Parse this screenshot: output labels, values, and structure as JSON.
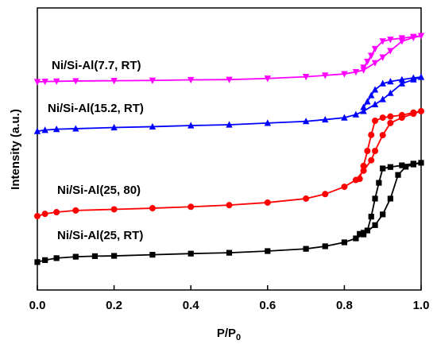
{
  "chart_data": {
    "type": "line",
    "ylabel": "Intensity (a.u.)",
    "xlabel": {
      "text": "P/P",
      "subscript": "0"
    },
    "xlim": [
      0,
      1
    ],
    "ylim": [
      0,
      100
    ],
    "xticks": [
      {
        "value": 0,
        "label": "0.0"
      },
      0.2,
      0.4,
      0.6,
      0.8,
      {
        "value": 1,
        "label": "1.0"
      }
    ],
    "series": [
      {
        "name": "Ni/Si-Al(25, RT)",
        "color": "#000000",
        "marker": "square",
        "x": [
          0,
          0.02,
          0.05,
          0.1,
          0.15,
          0.2,
          0.3,
          0.4,
          0.5,
          0.6,
          0.7,
          0.75,
          0.8,
          0.83,
          0.85,
          0.88,
          0.9,
          0.92,
          0.94,
          0.96,
          0.98,
          1.0,
          0.98,
          0.95,
          0.92,
          0.9,
          0.89,
          0.88,
          0.87,
          0.86,
          0.85,
          0.84
        ],
        "values": [
          9.9,
          10.6,
          11.3,
          11.8,
          12.0,
          12.1,
          12.5,
          12.9,
          13.2,
          13.8,
          14.6,
          15.5,
          16.9,
          18.3,
          19.7,
          23.0,
          26.8,
          32.4,
          40.8,
          43.7,
          44.5,
          45.1,
          44.8,
          44.2,
          43.6,
          43.1,
          38.0,
          32.4,
          26.0,
          21.1,
          20.3,
          19.9
        ]
      },
      {
        "name": "Ni/Si-Al(25, 80)",
        "color": "#ff0000",
        "marker": "circle",
        "x": [
          0,
          0.02,
          0.05,
          0.1,
          0.2,
          0.3,
          0.4,
          0.5,
          0.6,
          0.7,
          0.75,
          0.8,
          0.83,
          0.85,
          0.87,
          0.88,
          0.9,
          0.92,
          0.95,
          0.98,
          1.0,
          0.98,
          0.95,
          0.92,
          0.9,
          0.88,
          0.87,
          0.86,
          0.85,
          0.84
        ],
        "values": [
          26.2,
          27.0,
          27.6,
          28.2,
          28.6,
          29.0,
          29.5,
          30.1,
          31.0,
          32.4,
          34.0,
          36.6,
          39.0,
          42.3,
          46.0,
          49.3,
          54.9,
          59.2,
          61.1,
          62.5,
          63.4,
          62.9,
          62.0,
          61.5,
          61.1,
          60.0,
          55.0,
          49.3,
          44.0,
          39.4
        ]
      },
      {
        "name": "Ni/Si-Al(15.2, RT)",
        "color": "#0000ff",
        "marker": "triangle-up",
        "x": [
          0,
          0.02,
          0.05,
          0.1,
          0.2,
          0.3,
          0.4,
          0.5,
          0.6,
          0.7,
          0.75,
          0.8,
          0.83,
          0.85,
          0.88,
          0.9,
          0.92,
          0.95,
          0.98,
          1.0,
          0.98,
          0.95,
          0.92,
          0.9,
          0.88,
          0.87,
          0.86,
          0.85
        ],
        "values": [
          56.3,
          56.7,
          57.0,
          57.2,
          57.6,
          57.9,
          58.3,
          58.6,
          59.2,
          59.8,
          60.4,
          61.1,
          62.2,
          63.4,
          65.8,
          67.6,
          69.8,
          73.2,
          74.6,
          75.5,
          75.2,
          74.6,
          73.9,
          73.2,
          71.0,
          69.0,
          66.8,
          64.8
        ]
      },
      {
        "name": "Ni/Si-Al(7.7, RT)",
        "color": "#ff00ff",
        "marker": "triangle-down",
        "x": [
          0,
          0.02,
          0.05,
          0.1,
          0.2,
          0.3,
          0.4,
          0.5,
          0.6,
          0.7,
          0.75,
          0.8,
          0.83,
          0.85,
          0.88,
          0.9,
          0.92,
          0.95,
          0.98,
          1.0,
          0.98,
          0.95,
          0.92,
          0.9,
          0.88,
          0.87,
          0.86,
          0.85
        ],
        "values": [
          73.8,
          73.9,
          74.0,
          74.1,
          74.2,
          74.3,
          74.5,
          74.6,
          75.0,
          75.6,
          76.1,
          76.6,
          77.3,
          78.0,
          80.5,
          82.5,
          84.8,
          88.2,
          89.5,
          90.1,
          89.8,
          89.3,
          88.8,
          88.2,
          85.5,
          83.1,
          81.0,
          78.9
        ]
      }
    ]
  }
}
